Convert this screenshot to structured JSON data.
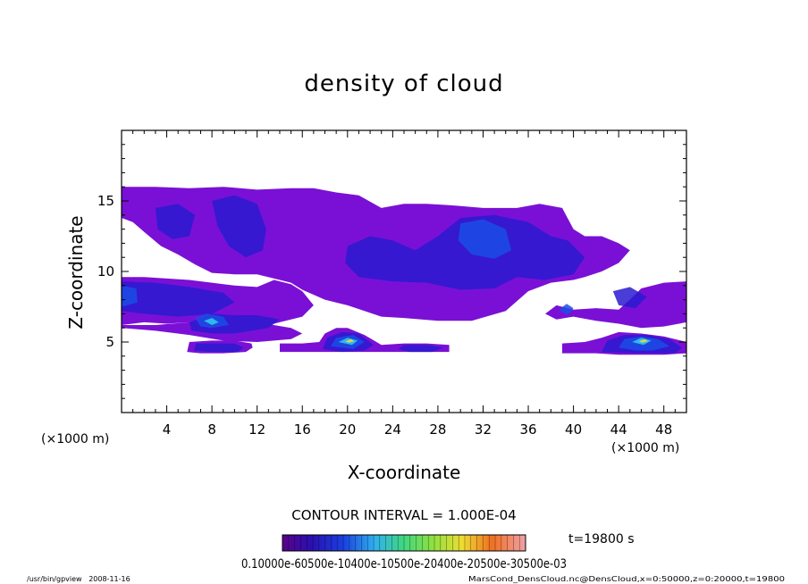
{
  "chart_data": {
    "type": "heatmap",
    "title": "density of cloud",
    "xlabel": "X-coordinate",
    "ylabel": "Z-coordinate",
    "x_unit_left": "(×1000 m)",
    "x_unit_right": "(×1000 m)",
    "x_ticks": [
      "4",
      "8",
      "12",
      "16",
      "20",
      "24",
      "28",
      "32",
      "36",
      "40",
      "44",
      "48"
    ],
    "y_ticks": [
      "5",
      "10",
      "15"
    ],
    "xlim": [
      0,
      50
    ],
    "ylim": [
      0,
      20
    ],
    "contour_interval": "CONTOUR INTERVAL = 1.000E-04",
    "time_label": "t=19800 s",
    "colorbar_labels": "0.10000e-60500e-10400e-10500e-20400e-20500e-30500e-03",
    "footer_left": "/usr/bin/gpview   2008-11-16",
    "footer_right": "MarsCond_DensCloud.nc@DensCloud,x=0:50000,z=0:20000,t=19800",
    "colors": {
      "base": "#7a10d6",
      "mid": "#4a22c8",
      "deep": "#2a1ad0",
      "core": "#1a4ee6",
      "cyan": "#33ccee",
      "green": "#44dd66",
      "yellow": "#eedd33"
    },
    "regions": [
      {
        "level": 0,
        "points": [
          [
            0,
            16.0
          ],
          [
            3,
            16.0
          ],
          [
            6,
            15.9
          ],
          [
            9,
            16.0
          ],
          [
            12,
            15.8
          ],
          [
            15,
            15.9
          ],
          [
            17,
            15.9
          ],
          [
            19,
            15.6
          ],
          [
            21,
            15.4
          ],
          [
            23,
            14.5
          ],
          [
            25,
            14.8
          ],
          [
            27,
            14.8
          ],
          [
            29,
            14.7
          ],
          [
            32,
            14.5
          ],
          [
            35,
            14.5
          ],
          [
            37,
            14.8
          ],
          [
            39,
            14.5
          ],
          [
            40,
            13.0
          ],
          [
            41,
            12.5
          ],
          [
            42.5,
            12.5
          ],
          [
            44,
            12.0
          ],
          [
            45,
            11.5
          ],
          [
            44,
            10.6
          ],
          [
            42.5,
            10.0
          ],
          [
            41,
            9.6
          ],
          [
            40,
            9.4
          ],
          [
            38,
            9.2
          ],
          [
            36,
            8.6
          ],
          [
            34,
            7.2
          ],
          [
            31,
            6.5
          ],
          [
            28,
            6.5
          ],
          [
            25,
            6.7
          ],
          [
            23,
            6.8
          ],
          [
            21.5,
            7.2
          ],
          [
            20,
            7.6
          ],
          [
            18,
            8.0
          ],
          [
            16,
            8.7
          ],
          [
            15,
            9.2
          ],
          [
            13.5,
            9.5
          ],
          [
            12,
            9.8
          ],
          [
            10,
            9.8
          ],
          [
            8,
            9.9
          ],
          [
            6.5,
            10.5
          ],
          [
            5,
            11.2
          ],
          [
            3.5,
            11.8
          ],
          [
            2,
            12.8
          ],
          [
            1,
            13.5
          ],
          [
            0,
            13.8
          ]
        ]
      },
      {
        "level": 0,
        "points": [
          [
            0,
            9.6
          ],
          [
            2,
            9.6
          ],
          [
            4,
            9.5
          ],
          [
            6,
            9.4
          ],
          [
            8,
            9.2
          ],
          [
            10,
            9.0
          ],
          [
            12,
            8.9
          ],
          [
            13.5,
            9.4
          ],
          [
            15,
            9.1
          ],
          [
            16,
            8.6
          ],
          [
            17,
            7.6
          ],
          [
            16,
            6.8
          ],
          [
            14,
            6.4
          ],
          [
            12,
            6.0
          ],
          [
            10,
            6.0
          ],
          [
            8,
            6.2
          ],
          [
            6,
            6.4
          ],
          [
            4,
            6.3
          ],
          [
            2,
            6.4
          ],
          [
            0,
            6.2
          ]
        ]
      },
      {
        "level": 0,
        "points": [
          [
            0,
            6.0
          ],
          [
            3,
            5.8
          ],
          [
            6,
            5.5
          ],
          [
            9,
            5.1
          ],
          [
            12,
            5.0
          ],
          [
            15,
            5.2
          ],
          [
            16,
            5.6
          ],
          [
            15,
            6.0
          ],
          [
            12,
            6.4
          ],
          [
            9,
            6.5
          ],
          [
            6,
            6.4
          ],
          [
            3,
            6.2
          ],
          [
            0,
            6.2
          ]
        ]
      },
      {
        "level": 0,
        "points": [
          [
            5.8,
            4.3
          ],
          [
            6,
            5.0
          ],
          [
            8,
            5.1
          ],
          [
            10,
            5.1
          ],
          [
            11.5,
            4.9
          ],
          [
            11.6,
            4.6
          ],
          [
            11,
            4.3
          ],
          [
            9,
            4.2
          ],
          [
            7,
            4.2
          ]
        ]
      },
      {
        "level": 0,
        "points": [
          [
            14,
            4.3
          ],
          [
            14,
            4.9
          ],
          [
            16,
            4.9
          ],
          [
            17.5,
            5.0
          ],
          [
            18,
            5.6
          ],
          [
            19,
            6.0
          ],
          [
            20,
            6.0
          ],
          [
            21.5,
            5.5
          ],
          [
            23,
            4.8
          ],
          [
            25,
            4.9
          ],
          [
            27,
            4.9
          ],
          [
            29,
            4.8
          ],
          [
            29,
            4.3
          ],
          [
            26,
            4.3
          ],
          [
            23,
            4.3
          ],
          [
            21,
            4.3
          ],
          [
            18,
            4.3
          ]
        ]
      },
      {
        "level": 0,
        "points": [
          [
            37.5,
            7.0
          ],
          [
            38.5,
            7.6
          ],
          [
            40,
            7.3
          ],
          [
            42,
            7.4
          ],
          [
            44,
            7.3
          ],
          [
            45,
            8.0
          ],
          [
            46,
            8.8
          ],
          [
            48,
            9.2
          ],
          [
            50,
            9.3
          ],
          [
            50,
            6.4
          ],
          [
            48,
            6.1
          ],
          [
            46,
            6.0
          ],
          [
            44,
            6.3
          ],
          [
            42,
            6.5
          ],
          [
            40,
            6.8
          ],
          [
            38.5,
            6.6
          ]
        ]
      },
      {
        "level": 0,
        "points": [
          [
            39,
            4.2
          ],
          [
            39,
            4.9
          ],
          [
            41,
            5.0
          ],
          [
            42.5,
            5.3
          ],
          [
            44,
            5.7
          ],
          [
            46,
            5.6
          ],
          [
            48,
            5.4
          ],
          [
            50,
            5.0
          ],
          [
            50,
            4.2
          ],
          [
            48,
            4.1
          ],
          [
            46,
            4.1
          ],
          [
            44,
            4.1
          ],
          [
            42,
            4.2
          ]
        ]
      },
      {
        "level": 1,
        "points": [
          [
            8,
            15.0
          ],
          [
            10,
            15.4
          ],
          [
            12,
            14.8
          ],
          [
            12.8,
            13.0
          ],
          [
            12.5,
            11.5
          ],
          [
            11,
            11.0
          ],
          [
            9.5,
            11.8
          ],
          [
            8.5,
            13.2
          ]
        ]
      },
      {
        "level": 1,
        "points": [
          [
            3,
            14.5
          ],
          [
            5,
            14.8
          ],
          [
            6.5,
            14.0
          ],
          [
            6,
            12.5
          ],
          [
            4.5,
            12.3
          ],
          [
            3.2,
            13.0
          ]
        ]
      },
      {
        "level": 1,
        "points": [
          [
            20,
            11.8
          ],
          [
            22,
            12.5
          ],
          [
            24,
            12.2
          ],
          [
            26,
            11.5
          ],
          [
            28,
            12.5
          ],
          [
            30,
            13.8
          ],
          [
            33,
            14.0
          ],
          [
            36,
            13.5
          ],
          [
            38,
            12.5
          ],
          [
            39.5,
            12.2
          ],
          [
            41,
            11.0
          ],
          [
            40,
            9.8
          ],
          [
            37.5,
            9.4
          ],
          [
            35,
            9.6
          ],
          [
            33,
            8.8
          ],
          [
            30,
            8.7
          ],
          [
            27,
            9.2
          ],
          [
            24,
            9.3
          ],
          [
            21,
            9.6
          ],
          [
            19.8,
            10.6
          ]
        ]
      },
      {
        "level": 1,
        "points": [
          [
            0,
            9.3
          ],
          [
            3,
            9.2
          ],
          [
            6,
            8.9
          ],
          [
            9,
            8.5
          ],
          [
            10,
            7.8
          ],
          [
            8,
            7.0
          ],
          [
            5,
            6.8
          ],
          [
            2,
            7.0
          ],
          [
            0,
            7.2
          ]
        ]
      },
      {
        "level": 1,
        "points": [
          [
            6,
            6.4
          ],
          [
            8,
            7.0
          ],
          [
            10,
            6.9
          ],
          [
            12,
            6.9
          ],
          [
            14,
            6.6
          ],
          [
            13,
            6.0
          ],
          [
            10,
            5.6
          ],
          [
            8,
            5.6
          ],
          [
            6.2,
            5.8
          ]
        ]
      },
      {
        "level": 1,
        "points": [
          [
            6.4,
            4.4
          ],
          [
            6.6,
            4.9
          ],
          [
            8.5,
            4.9
          ],
          [
            10,
            4.9
          ],
          [
            10.8,
            4.6
          ],
          [
            10.3,
            4.3
          ],
          [
            8,
            4.3
          ]
        ]
      },
      {
        "level": 1,
        "points": [
          [
            17.8,
            4.5
          ],
          [
            18.2,
            5.3
          ],
          [
            19.5,
            5.7
          ],
          [
            21,
            5.6
          ],
          [
            22.3,
            4.8
          ],
          [
            21.5,
            4.4
          ],
          [
            19.5,
            4.3
          ]
        ]
      },
      {
        "level": 1,
        "points": [
          [
            24.5,
            4.5
          ],
          [
            25,
            4.8
          ],
          [
            27,
            4.8
          ],
          [
            28.5,
            4.6
          ],
          [
            27.5,
            4.3
          ],
          [
            25.5,
            4.3
          ]
        ]
      },
      {
        "level": 1,
        "points": [
          [
            43.5,
            8.6
          ],
          [
            45,
            8.9
          ],
          [
            46.5,
            8.2
          ],
          [
            45.5,
            7.4
          ],
          [
            44,
            7.6
          ]
        ]
      },
      {
        "level": 1,
        "points": [
          [
            42.5,
            4.3
          ],
          [
            43,
            5.1
          ],
          [
            44.5,
            5.5
          ],
          [
            46.5,
            5.5
          ],
          [
            48.5,
            5.2
          ],
          [
            49.6,
            4.6
          ],
          [
            49,
            4.2
          ],
          [
            46,
            4.2
          ]
        ]
      },
      {
        "level": 2,
        "points": [
          [
            30,
            13.4
          ],
          [
            32,
            13.7
          ],
          [
            34,
            13.0
          ],
          [
            34.5,
            11.5
          ],
          [
            33,
            10.9
          ],
          [
            31,
            11.2
          ],
          [
            29.8,
            12.2
          ]
        ]
      },
      {
        "level": 2,
        "points": [
          [
            0,
            9.0
          ],
          [
            1.3,
            8.8
          ],
          [
            1.4,
            7.8
          ],
          [
            0,
            7.5
          ]
        ]
      },
      {
        "level": 2,
        "points": [
          [
            38.7,
            7.3
          ],
          [
            39.4,
            7.7
          ],
          [
            40,
            7.4
          ],
          [
            39.5,
            6.9
          ]
        ]
      },
      {
        "level": 2,
        "points": [
          [
            6.5,
            6.7
          ],
          [
            7.5,
            7.0
          ],
          [
            9,
            6.8
          ],
          [
            9.5,
            6.2
          ],
          [
            8,
            6.0
          ],
          [
            7,
            6.1
          ]
        ]
      },
      {
        "level": 2,
        "points": [
          [
            18.5,
            4.7
          ],
          [
            19,
            5.3
          ],
          [
            20.5,
            5.5
          ],
          [
            21.5,
            5.0
          ],
          [
            20.5,
            4.5
          ]
        ]
      },
      {
        "level": 2,
        "points": [
          [
            44,
            4.6
          ],
          [
            44.5,
            5.2
          ],
          [
            46,
            5.4
          ],
          [
            47.5,
            5.2
          ],
          [
            48.5,
            4.7
          ],
          [
            47,
            4.4
          ],
          [
            45.5,
            4.4
          ]
        ]
      },
      {
        "level": 3,
        "points": [
          [
            19.2,
            5.0
          ],
          [
            20,
            5.3
          ],
          [
            20.9,
            5.1
          ],
          [
            20.4,
            4.8
          ]
        ]
      },
      {
        "level": 3,
        "points": [
          [
            45.2,
            5.0
          ],
          [
            46,
            5.3
          ],
          [
            46.9,
            5.1
          ],
          [
            46.2,
            4.8
          ]
        ]
      },
      {
        "level": 3,
        "points": [
          [
            7.3,
            6.5
          ],
          [
            8,
            6.7
          ],
          [
            8.6,
            6.4
          ],
          [
            8,
            6.2
          ]
        ]
      },
      {
        "level": 4,
        "points": [
          [
            19.8,
            5.05
          ],
          [
            20.3,
            5.2
          ],
          [
            20.6,
            5.05
          ],
          [
            20.1,
            4.95
          ]
        ]
      },
      {
        "level": 4,
        "points": [
          [
            45.8,
            5.05
          ],
          [
            46.3,
            5.2
          ],
          [
            46.6,
            5.05
          ],
          [
            46.1,
            4.95
          ]
        ]
      }
    ]
  }
}
